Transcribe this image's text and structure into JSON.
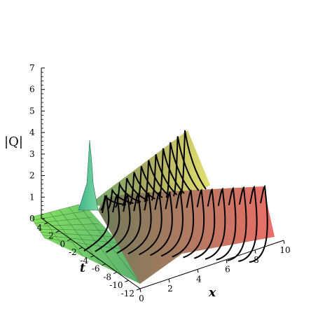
{
  "chart_data": {
    "type": "surface3d",
    "z_label": "|Q|",
    "x_label": "x",
    "t_label": "t",
    "z_ticks": [
      0,
      1,
      2,
      3,
      4,
      5,
      6,
      7
    ],
    "x_ticks": [
      0,
      2,
      4,
      6,
      8,
      10
    ],
    "t_ticks": [
      4,
      2,
      0,
      -2,
      -4,
      -6,
      -8,
      -10,
      -12
    ],
    "z_range": [
      0,
      7
    ],
    "x_range": [
      0,
      10
    ],
    "t_range": [
      -12,
      5
    ],
    "peak": {
      "x": 0,
      "t": 0,
      "value": 3.7
    },
    "ridges": [
      {
        "name": "",
        "max_value": 2.2
      },
      {
        "name": "",
        "max_value": 1.5
      }
    ],
    "colors": {
      "left": "#7ed85a",
      "mid": "#8c8a50",
      "back": "#d8d860",
      "front": "#e06a60"
    }
  }
}
